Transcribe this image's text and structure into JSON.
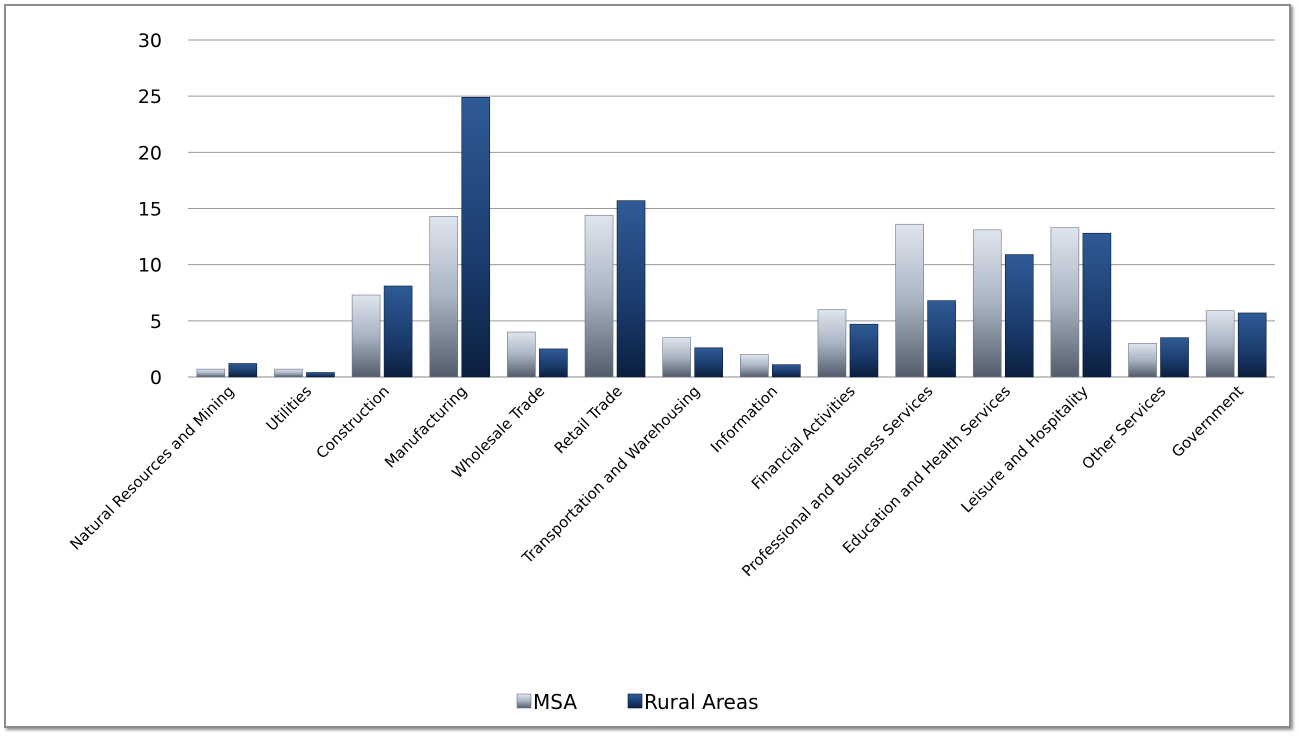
{
  "chart_data": {
    "type": "bar",
    "title": "",
    "xlabel": "",
    "ylabel": "",
    "ylim": [
      0,
      30
    ],
    "yticks": [
      0,
      5,
      10,
      15,
      20,
      25,
      30
    ],
    "grid": true,
    "legend_position": "bottom",
    "categories": [
      "Natural Resources and Mining",
      "Utilities",
      "Construction",
      "Manufacturing",
      "Wholesale Trade",
      "Retail Trade",
      "Transportation and Warehousing",
      "Information",
      "Financial Activities",
      "Professional and Business Services",
      "Education and Health Services",
      "Leisure and Hospitality",
      "Other Services",
      "Government"
    ],
    "series": [
      {
        "name": "MSA",
        "color": "#9aa7b8",
        "values": [
          0.7,
          0.7,
          7.3,
          14.3,
          4.0,
          14.4,
          3.5,
          2.0,
          6.0,
          13.6,
          13.1,
          13.3,
          3.0,
          5.9
        ]
      },
      {
        "name": "Rural Areas",
        "color": "#1c3f73",
        "values": [
          1.2,
          0.4,
          8.1,
          24.9,
          2.5,
          15.7,
          2.6,
          1.1,
          4.7,
          6.8,
          10.9,
          12.8,
          3.5,
          5.7
        ]
      }
    ]
  }
}
